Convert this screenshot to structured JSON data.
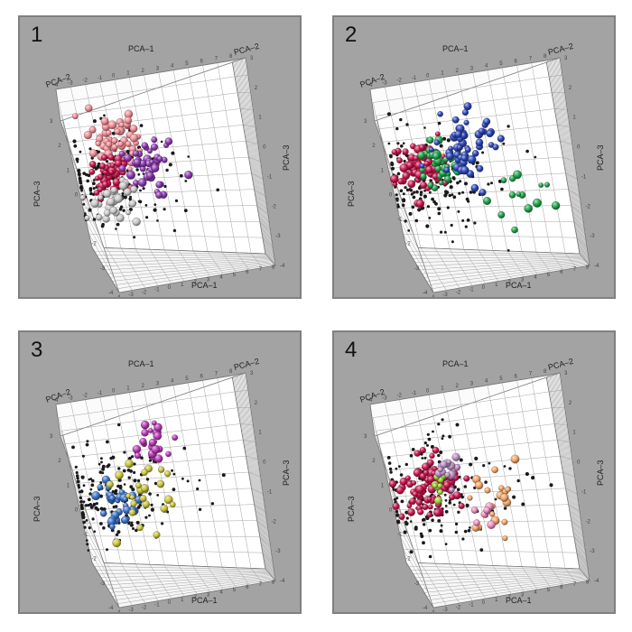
{
  "panels": [
    {
      "label": "1"
    },
    {
      "label": "2"
    },
    {
      "label": "3"
    },
    {
      "label": "4"
    }
  ],
  "axes": {
    "x_label": "PCA–1",
    "y_label": "PCA–2",
    "z_label": "PCA–3",
    "x_ticks": [
      "-4",
      "-3",
      "-2",
      "-1",
      "0",
      "1",
      "2",
      "3",
      "4",
      "5",
      "6",
      "7",
      "8"
    ],
    "z_ticks": [
      "-4",
      "-3",
      "-2",
      "-1",
      "0",
      "1",
      "2",
      "3"
    ]
  },
  "chart_data": [
    {
      "type": "scatter",
      "projection": "3d",
      "background": "#a3a3a3",
      "point_base_color": "#1a1a1a",
      "clusters": [
        {
          "color": "#f08c94",
          "cx": -1.2,
          "cy": 1.8,
          "spread": 1.0,
          "count": 55
        },
        {
          "color": "#c9164d",
          "cx": -2.0,
          "cy": 0.2,
          "spread": 0.7,
          "count": 40
        },
        {
          "color": "#8e3bb2",
          "cx": 0.8,
          "cy": 0.4,
          "spread": 0.9,
          "count": 45
        },
        {
          "color": "#c8c8c8",
          "cx": -2.3,
          "cy": -1.2,
          "spread": 0.8,
          "count": 32
        }
      ]
    },
    {
      "type": "scatter",
      "projection": "3d",
      "background": "#a3a3a3",
      "point_base_color": "#1a1a1a",
      "clusters": [
        {
          "color": "#c9164d",
          "cx": -2.2,
          "cy": 0.6,
          "spread": 0.8,
          "count": 70
        },
        {
          "color": "#1fa34c",
          "cx": -0.7,
          "cy": 0.8,
          "spread": 0.7,
          "count": 40
        },
        {
          "color": "#2c46b8",
          "cx": 1.2,
          "cy": 1.4,
          "spread": 1.1,
          "count": 55
        },
        {
          "color": "#1fa34c",
          "cx": 4.2,
          "cy": -1.4,
          "spread": 0.9,
          "count": 14
        }
      ]
    },
    {
      "type": "scatter",
      "projection": "3d",
      "background": "#a3a3a3",
      "point_base_color": "#1a1a1a",
      "clusters": [
        {
          "color": "#b93ab6",
          "cx": 1.5,
          "cy": 2.3,
          "spread": 0.7,
          "count": 22
        },
        {
          "color": "#3b72c8",
          "cx": -1.6,
          "cy": -0.4,
          "spread": 0.8,
          "count": 35
        },
        {
          "color": "#c9c43a",
          "cx": 0.3,
          "cy": -0.4,
          "spread": 1.2,
          "count": 26
        }
      ]
    },
    {
      "type": "scatter",
      "projection": "3d",
      "background": "#a3a3a3",
      "point_base_color": "#1a1a1a",
      "clusters": [
        {
          "color": "#c9164d",
          "cx": -1.6,
          "cy": 0.4,
          "spread": 1.0,
          "count": 80
        },
        {
          "color": "#9fd33a",
          "cx": -0.9,
          "cy": 0.3,
          "spread": 0.4,
          "count": 10
        },
        {
          "color": "#b88ec2",
          "cx": -0.1,
          "cy": 1.0,
          "spread": 0.5,
          "count": 14
        },
        {
          "color": "#f0a466",
          "cx": 2.8,
          "cy": -0.7,
          "spread": 1.0,
          "count": 22
        },
        {
          "color": "#f08cbd",
          "cx": 2.0,
          "cy": -1.3,
          "spread": 0.4,
          "count": 8
        }
      ]
    }
  ]
}
